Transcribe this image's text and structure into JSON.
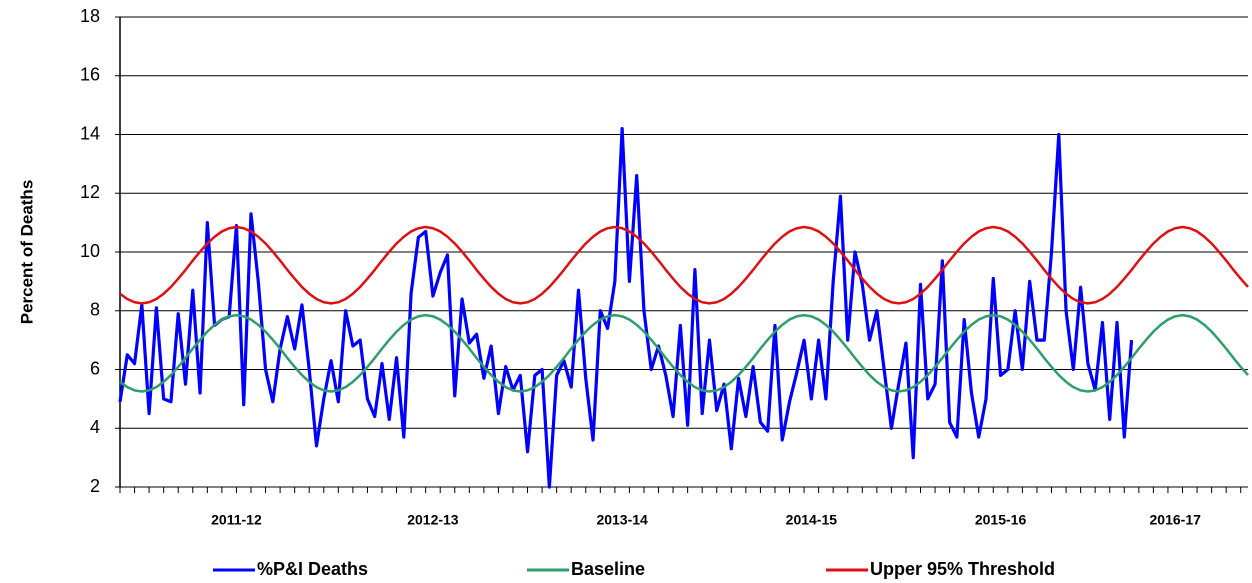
{
  "chart_data": {
    "type": "line",
    "y_label": "Percent of Deaths",
    "ylim": [
      2,
      18
    ],
    "yticks": [
      2,
      4,
      6,
      8,
      10,
      12,
      14,
      16,
      18
    ],
    "grid": true,
    "legend": "bottom",
    "categories": [
      null,
      null,
      null,
      null,
      null,
      null,
      null,
      null,
      null,
      null,
      null,
      null,
      null,
      null,
      null,
      null,
      "2011-12",
      null,
      null,
      null,
      null,
      null,
      null,
      null,
      null,
      null,
      null,
      null,
      null,
      null,
      null,
      null,
      null,
      null,
      null,
      null,
      null,
      null,
      null,
      null,
      null,
      null,
      null,
      "2012-13",
      null,
      null,
      null,
      null,
      null,
      null,
      null,
      null,
      null,
      null,
      null,
      null,
      null,
      null,
      null,
      null,
      null,
      null,
      null,
      null,
      null,
      null,
      null,
      null,
      null,
      "2013-14",
      null,
      null,
      null,
      null,
      null,
      null,
      null,
      null,
      null,
      null,
      null,
      null,
      null,
      null,
      null,
      null,
      null,
      null,
      null,
      null,
      null,
      null,
      null,
      null,
      null,
      "2014-15",
      null,
      null,
      null,
      null,
      null,
      null,
      null,
      null,
      null,
      null,
      null,
      null,
      null,
      null,
      null,
      null,
      null,
      null,
      null,
      null,
      null,
      null,
      null,
      null,
      null,
      "2015-16",
      null,
      null,
      null,
      null,
      null,
      null,
      null,
      null,
      null,
      null,
      null,
      null,
      null,
      null,
      null,
      null,
      null,
      null,
      null,
      null,
      null,
      null,
      null,
      "2016-17",
      null,
      null,
      null,
      null,
      null,
      null,
      null,
      null,
      null,
      null
    ],
    "series": [
      {
        "name": "%P&I Deaths",
        "color": "#0000ff",
        "width": 3.2,
        "values": [
          4.9,
          6.5,
          6.2,
          8.2,
          4.5,
          8.1,
          5.0,
          4.9,
          7.9,
          5.5,
          8.7,
          5.2,
          11.0,
          7.5,
          7.7,
          7.8,
          10.9,
          4.8,
          11.3,
          9.0,
          6.0,
          4.9,
          6.7,
          7.8,
          6.7,
          8.2,
          6.0,
          3.4,
          5.0,
          6.3,
          4.9,
          8.0,
          6.8,
          7.0,
          5.0,
          4.4,
          6.2,
          4.3,
          6.4,
          3.7,
          8.6,
          10.5,
          10.7,
          8.5,
          9.3,
          9.9,
          5.1,
          8.4,
          6.9,
          7.2,
          5.7,
          6.8,
          4.5,
          6.1,
          5.3,
          5.8,
          3.2,
          5.8,
          6.0,
          2.0,
          5.8,
          6.3,
          5.4,
          8.7,
          5.7,
          3.6,
          8.0,
          7.4,
          9.0,
          14.2,
          9.0,
          12.6,
          8.0,
          6.0,
          6.8,
          5.8,
          4.4,
          7.5,
          4.1,
          9.4,
          4.5,
          7.0,
          4.6,
          5.5,
          3.3,
          5.7,
          4.4,
          6.1,
          4.2,
          3.9,
          7.5,
          3.6,
          4.9,
          5.9,
          7.0,
          5.0,
          7.0,
          5.0,
          9.0,
          11.9,
          7.0,
          10.0,
          8.9,
          7.0,
          8.0,
          6.0,
          4.0,
          5.5,
          6.9,
          3.0,
          8.9,
          5.0,
          5.5,
          9.7,
          4.2,
          3.7,
          7.7,
          5.2,
          3.7,
          5.0,
          9.1,
          5.8,
          6.0,
          8.0,
          6.0,
          9.0,
          7.0,
          7.0,
          10.0,
          14.0,
          8.0,
          6.0,
          8.8,
          6.2,
          5.3,
          7.6,
          4.3,
          7.6,
          3.7,
          7.0,
          null,
          null,
          null,
          null,
          null,
          null,
          null,
          null,
          null,
          null,
          null,
          null,
          null,
          null,
          null,
          null
        ]
      },
      {
        "name": "Baseline",
        "color": "#2e9e6b",
        "width": 2.5,
        "values": [
          5.58,
          5.4,
          5.29,
          5.25,
          5.29,
          5.4,
          5.58,
          5.81,
          6.09,
          6.39,
          6.71,
          7.01,
          7.29,
          7.52,
          7.7,
          7.81,
          7.85,
          7.81,
          7.7,
          7.52,
          7.29,
          7.01,
          6.71,
          6.39,
          6.09,
          5.81,
          5.58,
          5.4,
          5.29,
          5.25,
          5.29,
          5.4,
          5.58,
          5.81,
          6.09,
          6.39,
          6.71,
          7.01,
          7.29,
          7.52,
          7.7,
          7.81,
          7.85,
          7.81,
          7.7,
          7.52,
          7.29,
          7.01,
          6.71,
          6.39,
          6.09,
          5.81,
          5.58,
          5.4,
          5.29,
          5.25,
          5.29,
          5.4,
          5.58,
          5.81,
          6.09,
          6.39,
          6.71,
          7.01,
          7.29,
          7.52,
          7.7,
          7.81,
          7.85,
          7.81,
          7.7,
          7.52,
          7.29,
          7.01,
          6.71,
          6.39,
          6.09,
          5.81,
          5.58,
          5.4,
          5.29,
          5.25,
          5.29,
          5.4,
          5.58,
          5.81,
          6.09,
          6.39,
          6.71,
          7.01,
          7.29,
          7.52,
          7.7,
          7.81,
          7.85,
          7.81,
          7.7,
          7.52,
          7.29,
          7.01,
          6.71,
          6.39,
          6.09,
          5.81,
          5.58,
          5.4,
          5.29,
          5.25,
          5.29,
          5.4,
          5.58,
          5.81,
          6.09,
          6.39,
          6.71,
          7.01,
          7.29,
          7.52,
          7.7,
          7.81,
          7.85,
          7.81,
          7.7,
          7.52,
          7.29,
          7.01,
          6.71,
          6.39,
          6.09,
          5.81,
          5.58,
          5.4,
          5.29,
          5.25,
          5.29,
          5.4,
          5.58,
          5.81,
          6.09,
          6.39,
          6.71,
          7.01,
          7.29,
          7.52,
          7.7,
          7.81,
          7.85,
          7.81,
          7.7,
          7.52,
          7.29,
          7.01,
          6.71,
          6.39,
          6.09,
          5.81
        ]
      },
      {
        "name": "Upper 95% Threshold",
        "color": "#dd1111",
        "width": 2.5,
        "values": [
          8.58,
          8.4,
          8.29,
          8.25,
          8.29,
          8.4,
          8.58,
          8.81,
          9.09,
          9.39,
          9.71,
          10.01,
          10.29,
          10.52,
          10.7,
          10.81,
          10.85,
          10.81,
          10.7,
          10.52,
          10.29,
          10.01,
          9.71,
          9.39,
          9.09,
          8.81,
          8.58,
          8.4,
          8.29,
          8.25,
          8.29,
          8.4,
          8.58,
          8.81,
          9.09,
          9.39,
          9.71,
          10.01,
          10.29,
          10.52,
          10.7,
          10.81,
          10.85,
          10.81,
          10.7,
          10.52,
          10.29,
          10.01,
          9.71,
          9.39,
          9.09,
          8.81,
          8.58,
          8.4,
          8.29,
          8.25,
          8.29,
          8.4,
          8.58,
          8.81,
          9.09,
          9.39,
          9.71,
          10.01,
          10.29,
          10.52,
          10.7,
          10.81,
          10.85,
          10.81,
          10.7,
          10.52,
          10.29,
          10.01,
          9.71,
          9.39,
          9.09,
          8.81,
          8.58,
          8.4,
          8.29,
          8.25,
          8.29,
          8.4,
          8.58,
          8.81,
          9.09,
          9.39,
          9.71,
          10.01,
          10.29,
          10.52,
          10.7,
          10.81,
          10.85,
          10.81,
          10.7,
          10.52,
          10.29,
          10.01,
          9.71,
          9.39,
          9.09,
          8.81,
          8.58,
          8.4,
          8.29,
          8.25,
          8.29,
          8.4,
          8.58,
          8.81,
          9.09,
          9.39,
          9.71,
          10.01,
          10.29,
          10.52,
          10.7,
          10.81,
          10.85,
          10.81,
          10.7,
          10.52,
          10.29,
          10.01,
          9.71,
          9.39,
          9.09,
          8.81,
          8.58,
          8.4,
          8.29,
          8.25,
          8.29,
          8.4,
          8.58,
          8.81,
          9.09,
          9.39,
          9.71,
          10.01,
          10.29,
          10.52,
          10.7,
          10.81,
          10.85,
          10.81,
          10.7,
          10.52,
          10.29,
          10.01,
          9.71,
          9.39,
          9.09,
          8.81
        ]
      }
    ]
  }
}
